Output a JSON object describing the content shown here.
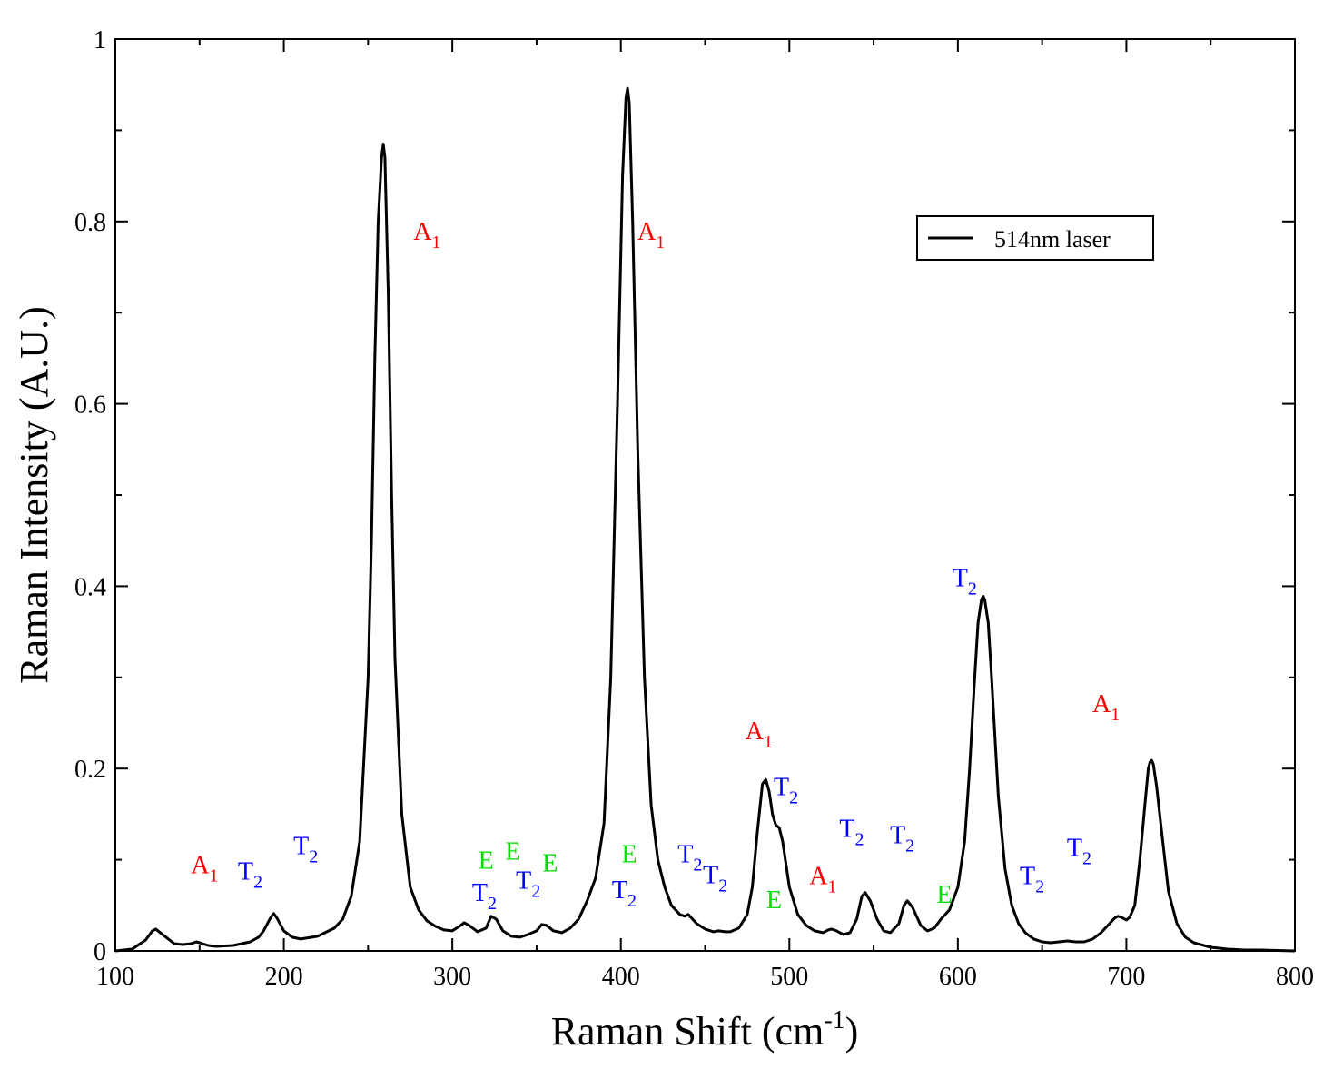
{
  "chart_data": {
    "type": "line",
    "title": "",
    "xlabel": "Raman Shift (cm",
    "xlabel_sup": "-1",
    "xlabel_close": ")",
    "ylabel": "Raman Intensity (A.U.)",
    "xlim": [
      100,
      800
    ],
    "ylim": [
      0,
      1
    ],
    "x_ticks": [
      "100",
      "200",
      "300",
      "400",
      "500",
      "600",
      "700",
      "800"
    ],
    "y_ticks": [
      "0",
      "0.2",
      "0.4",
      "0.6",
      "0.8",
      "1"
    ],
    "grid": false,
    "legend": {
      "position": "top-right",
      "entries": [
        "514nm laser"
      ]
    },
    "series": [
      {
        "name": "514nm laser",
        "color": "#000000",
        "x": [
          100,
          110,
          118,
          122,
          124,
          128,
          135,
          140,
          145,
          148,
          150,
          155,
          160,
          170,
          180,
          185,
          188,
          192,
          194,
          196,
          200,
          205,
          210,
          220,
          230,
          235,
          240,
          245,
          250,
          252,
          254,
          256,
          258,
          259,
          260,
          262,
          264,
          266,
          270,
          275,
          280,
          285,
          290,
          295,
          300,
          305,
          307,
          310,
          315,
          320,
          323,
          326,
          330,
          335,
          340,
          345,
          350,
          353,
          356,
          360,
          365,
          370,
          375,
          380,
          385,
          390,
          394,
          398,
          401,
          403,
          404,
          405,
          407,
          410,
          414,
          418,
          422,
          426,
          430,
          435,
          438,
          440,
          445,
          450,
          455,
          458,
          462,
          465,
          470,
          475,
          478,
          481,
          484,
          486,
          488,
          490,
          492,
          494,
          496,
          500,
          505,
          510,
          515,
          520,
          523,
          525,
          528,
          532,
          536,
          540,
          543,
          545,
          548,
          552,
          556,
          560,
          565,
          568,
          570,
          573,
          578,
          582,
          586,
          590,
          595,
          600,
          604,
          607,
          610,
          612,
          614,
          615,
          616,
          618,
          620,
          624,
          628,
          632,
          636,
          640,
          645,
          650,
          655,
          660,
          665,
          670,
          675,
          680,
          685,
          690,
          693,
          695,
          697,
          700,
          702,
          705,
          708,
          711,
          713,
          714,
          715,
          716,
          718,
          721,
          725,
          730,
          735,
          740,
          750,
          760,
          770,
          780,
          790,
          800
        ],
        "y": [
          0.0,
          0.002,
          0.012,
          0.022,
          0.024,
          0.018,
          0.008,
          0.007,
          0.008,
          0.01,
          0.009,
          0.006,
          0.005,
          0.006,
          0.01,
          0.015,
          0.022,
          0.036,
          0.041,
          0.036,
          0.022,
          0.015,
          0.013,
          0.016,
          0.025,
          0.035,
          0.06,
          0.12,
          0.3,
          0.45,
          0.65,
          0.8,
          0.87,
          0.885,
          0.87,
          0.72,
          0.5,
          0.32,
          0.15,
          0.07,
          0.045,
          0.033,
          0.027,
          0.023,
          0.022,
          0.028,
          0.031,
          0.028,
          0.021,
          0.025,
          0.038,
          0.035,
          0.022,
          0.016,
          0.015,
          0.018,
          0.022,
          0.029,
          0.028,
          0.022,
          0.02,
          0.025,
          0.035,
          0.055,
          0.08,
          0.14,
          0.3,
          0.6,
          0.85,
          0.935,
          0.946,
          0.93,
          0.8,
          0.55,
          0.3,
          0.16,
          0.1,
          0.07,
          0.05,
          0.04,
          0.038,
          0.04,
          0.03,
          0.024,
          0.021,
          0.022,
          0.021,
          0.021,
          0.025,
          0.04,
          0.07,
          0.13,
          0.183,
          0.188,
          0.175,
          0.15,
          0.138,
          0.135,
          0.12,
          0.07,
          0.04,
          0.028,
          0.022,
          0.02,
          0.023,
          0.024,
          0.022,
          0.018,
          0.02,
          0.035,
          0.06,
          0.064,
          0.055,
          0.035,
          0.022,
          0.02,
          0.03,
          0.05,
          0.055,
          0.048,
          0.028,
          0.022,
          0.025,
          0.035,
          0.045,
          0.07,
          0.12,
          0.2,
          0.3,
          0.36,
          0.385,
          0.389,
          0.385,
          0.36,
          0.3,
          0.17,
          0.09,
          0.05,
          0.03,
          0.02,
          0.013,
          0.01,
          0.009,
          0.01,
          0.011,
          0.01,
          0.01,
          0.013,
          0.02,
          0.03,
          0.036,
          0.038,
          0.037,
          0.034,
          0.037,
          0.05,
          0.1,
          0.16,
          0.2,
          0.207,
          0.209,
          0.205,
          0.18,
          0.13,
          0.065,
          0.03,
          0.015,
          0.009,
          0.004,
          0.002,
          0.001,
          0.001,
          0.0005,
          0.0
        ]
      }
    ],
    "annotations": [
      {
        "main": "A",
        "sub": "1",
        "x": 153,
        "y": 0.085,
        "color": "#ff0000"
      },
      {
        "main": "T",
        "sub": "2",
        "x": 180,
        "y": 0.078,
        "color": "#0000ff"
      },
      {
        "main": "T",
        "sub": "2",
        "x": 213,
        "y": 0.106,
        "color": "#0000ff"
      },
      {
        "main": "A",
        "sub": "1",
        "x": 285,
        "y": 0.78,
        "color": "#ff0000"
      },
      {
        "main": "E",
        "sub": "",
        "x": 320,
        "y": 0.09,
        "color": "#00dd00"
      },
      {
        "main": "E",
        "sub": "",
        "x": 336,
        "y": 0.1,
        "color": "#00dd00"
      },
      {
        "main": "E",
        "sub": "",
        "x": 358,
        "y": 0.087,
        "color": "#00dd00"
      },
      {
        "main": "T",
        "sub": "2",
        "x": 319,
        "y": 0.055,
        "color": "#0000ff"
      },
      {
        "main": "T",
        "sub": "2",
        "x": 345,
        "y": 0.068,
        "color": "#0000ff"
      },
      {
        "main": "A",
        "sub": "1",
        "x": 418,
        "y": 0.78,
        "color": "#ff0000"
      },
      {
        "main": "E",
        "sub": "",
        "x": 405,
        "y": 0.097,
        "color": "#00dd00"
      },
      {
        "main": "T",
        "sub": "2",
        "x": 402,
        "y": 0.058,
        "color": "#0000ff"
      },
      {
        "main": "T",
        "sub": "2",
        "x": 441,
        "y": 0.097,
        "color": "#0000ff"
      },
      {
        "main": "T",
        "sub": "2",
        "x": 456,
        "y": 0.074,
        "color": "#0000ff"
      },
      {
        "main": "A",
        "sub": "1",
        "x": 482,
        "y": 0.232,
        "color": "#ff0000"
      },
      {
        "main": "T",
        "sub": "2",
        "x": 498,
        "y": 0.171,
        "color": "#0000ff"
      },
      {
        "main": "E",
        "sub": "",
        "x": 491,
        "y": 0.047,
        "color": "#00dd00"
      },
      {
        "main": "A",
        "sub": "1",
        "x": 520,
        "y": 0.073,
        "color": "#ff0000"
      },
      {
        "main": "T",
        "sub": "2",
        "x": 537,
        "y": 0.125,
        "color": "#0000ff"
      },
      {
        "main": "T",
        "sub": "2",
        "x": 567,
        "y": 0.118,
        "color": "#0000ff"
      },
      {
        "main": "E",
        "sub": "",
        "x": 592,
        "y": 0.053,
        "color": "#00dd00"
      },
      {
        "main": "T",
        "sub": "2",
        "x": 604,
        "y": 0.4,
        "color": "#0000ff"
      },
      {
        "main": "T",
        "sub": "2",
        "x": 644,
        "y": 0.073,
        "color": "#0000ff"
      },
      {
        "main": "T",
        "sub": "2",
        "x": 672,
        "y": 0.104,
        "color": "#0000ff"
      },
      {
        "main": "A",
        "sub": "1",
        "x": 688,
        "y": 0.262,
        "color": "#ff0000"
      }
    ]
  }
}
